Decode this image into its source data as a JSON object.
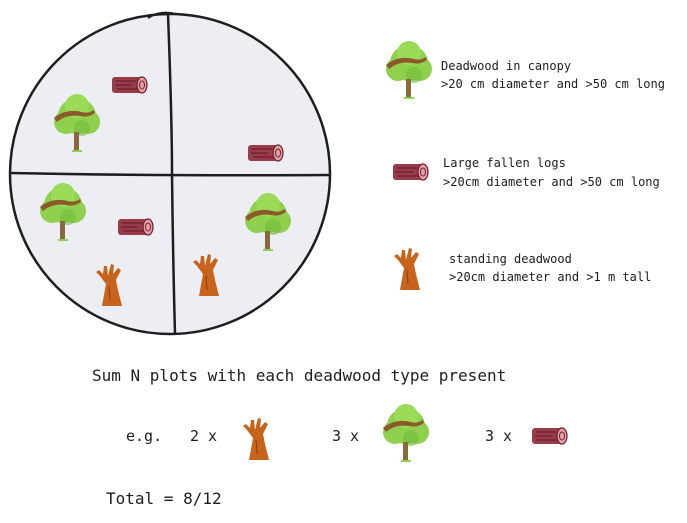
{
  "legend": [
    {
      "icon": "tree-with-branch-icon",
      "title": "Deadwood in canopy",
      "detail": ">20 cm diameter and >50 cm long"
    },
    {
      "icon": "log-icon",
      "title": "Large fallen logs",
      "detail": ">20cm diameter and >50 cm long"
    },
    {
      "icon": "dead-tree-icon",
      "title": "standing deadwood",
      "detail": ">20cm diameter and >1 m tall"
    }
  ],
  "plot": {
    "quadrants": [
      {
        "position": "top-left",
        "items": [
          "log-icon",
          "tree-with-branch-icon"
        ]
      },
      {
        "position": "top-right",
        "items": [
          "log-icon"
        ]
      },
      {
        "position": "bottom-left",
        "items": [
          "tree-with-branch-icon",
          "log-icon",
          "dead-tree-icon"
        ]
      },
      {
        "position": "bottom-right",
        "items": [
          "tree-with-branch-icon",
          "dead-tree-icon"
        ]
      }
    ]
  },
  "summary": {
    "heading": "Sum N plots with each deadwood type present",
    "example_prefix": "e.g.",
    "counts": [
      {
        "label": "2 x",
        "icon": "dead-tree-icon"
      },
      {
        "label": "3 x",
        "icon": "tree-with-branch-icon"
      },
      {
        "label": "3 x",
        "icon": "log-icon"
      }
    ],
    "total": "Total = 8/12"
  },
  "colors": {
    "canopy": "#8fd14f",
    "canopy_shade": "#6fba3a",
    "trunk": "#8a6a3c",
    "branch": "#8a5a2b",
    "log": "#9a3b4a",
    "log_end": "#e8a0a8",
    "dead_tree": "#c8631c",
    "circle_fill": "#eceef3",
    "ink": "#1e1e1e"
  }
}
